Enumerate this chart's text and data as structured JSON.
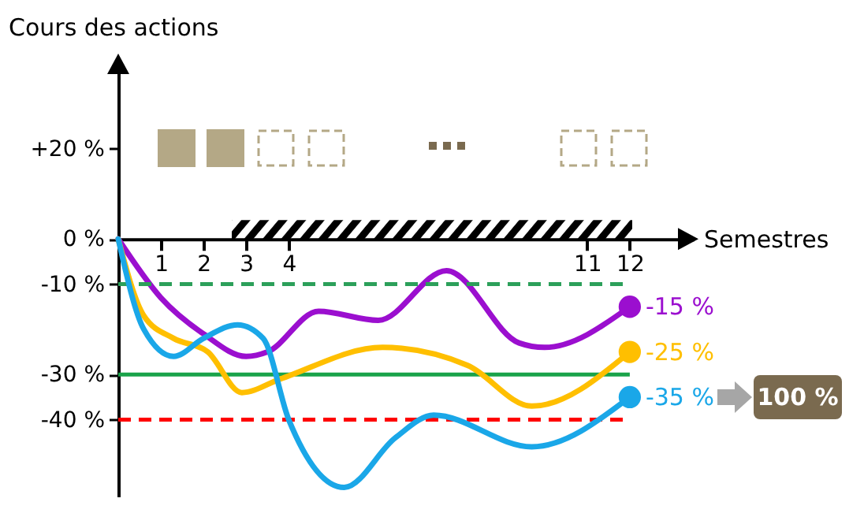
{
  "chart_data": {
    "type": "line",
    "xlabel": "Semestres",
    "ylabel": "Cours des actions",
    "xlim": [
      0,
      13.5
    ],
    "xticks": [
      1,
      2,
      3,
      4,
      11,
      12
    ],
    "ylim": [
      -57,
      40
    ],
    "yticks": [
      {
        "value": 20,
        "label": "+20 %"
      },
      {
        "value": 0,
        "label": "0 %"
      },
      {
        "value": -10,
        "label": "-10 %"
      },
      {
        "value": -30,
        "label": "-30 %"
      },
      {
        "value": -40,
        "label": "-40 %"
      }
    ],
    "grid": false,
    "series": [
      {
        "color": "#9b0fcf",
        "x": [
          0,
          1,
          2,
          3,
          3.5,
          4.7,
          6.1,
          7.7,
          9.4,
          10,
          12
        ],
        "values": [
          0,
          -13,
          -21,
          -26,
          -25,
          -16,
          -18,
          -7,
          -23,
          -24,
          -15
        ],
        "value_labels": [
          null,
          null,
          null,
          null,
          null,
          null,
          null,
          null,
          null,
          null,
          "-15 %"
        ]
      },
      {
        "color": "#ffbf00",
        "x": [
          0,
          0.6,
          1.3,
          2.1,
          2.9,
          3.8,
          6.2,
          8.2,
          9.7,
          12
        ],
        "values": [
          0,
          -17,
          -22,
          -25,
          -34,
          -31,
          -24,
          -28,
          -37,
          -25
        ],
        "value_labels": [
          null,
          null,
          null,
          null,
          null,
          null,
          null,
          null,
          null,
          "-25 %"
        ]
      },
      {
        "color": "#1aa7e8",
        "x": [
          0,
          0.6,
          1.3,
          2,
          2.8,
          3.4,
          4,
          5.3,
          6.5,
          7.4,
          9.7,
          12
        ],
        "values": [
          0,
          -20,
          -26,
          -22,
          -19,
          -22,
          -40,
          -55,
          -44,
          -39,
          -46,
          -35
        ],
        "value_labels": [
          null,
          null,
          null,
          null,
          null,
          null,
          null,
          null,
          null,
          null,
          null,
          "-35 %"
        ]
      }
    ],
    "ref_lines": [
      {
        "axis": "y",
        "value": -10,
        "color": "#2ca05a",
        "line_style": "dashed"
      },
      {
        "axis": "y",
        "value": -30,
        "color": "#1aa34a",
        "line_style": "solid"
      },
      {
        "axis": "y",
        "value": -40,
        "color": "#ff0000",
        "line_style": "dashed"
      }
    ],
    "annotations": [
      "100 %"
    ]
  }
}
